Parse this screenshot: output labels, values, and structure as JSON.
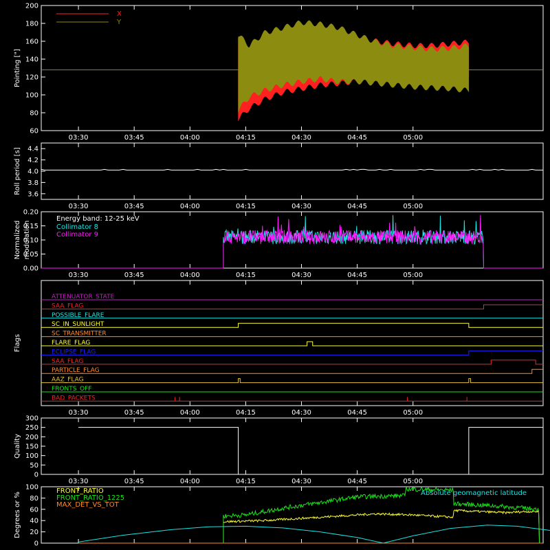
{
  "colors": {
    "bg": "#000000",
    "fg": "#ffffff",
    "red": "#ff2020",
    "olive": "#8c8c10",
    "cyan": "#19e6e6",
    "magenta": "#ff19ff",
    "yellow": "#ffff33",
    "green": "#19e619",
    "orange": "#ff8c2a",
    "blue": "#2020ff",
    "purple": "#c020c0",
    "gold": "#e6c040"
  },
  "time_ticks": [
    "03:30",
    "03:45",
    "04:00",
    "04:15",
    "04:30",
    "04:45",
    "05:00"
  ],
  "chart_data": [
    {
      "id": "pointing",
      "type": "area",
      "ylabel": "Pointing [\"]",
      "ylim": [
        60,
        200
      ],
      "yticks": [
        60,
        80,
        100,
        120,
        140,
        160,
        180,
        200
      ],
      "series": [
        {
          "name": "X",
          "color": "red",
          "start_min": 43,
          "end_min": 105,
          "upper": [
            [
              43,
              168
            ],
            [
              46,
              150
            ],
            [
              50,
              160
            ],
            [
              55,
              166
            ],
            [
              60,
              170
            ],
            [
              65,
              172
            ],
            [
              70,
              168
            ],
            [
              75,
              166
            ],
            [
              80,
              163
            ],
            [
              85,
              160
            ],
            [
              90,
              158
            ],
            [
              95,
              158
            ],
            [
              100,
              160
            ],
            [
              105,
              162
            ]
          ],
          "lower": [
            [
              43,
              70
            ],
            [
              46,
              82
            ],
            [
              50,
              92
            ],
            [
              55,
              100
            ],
            [
              60,
              104
            ],
            [
              65,
              108
            ],
            [
              70,
              110
            ],
            [
              75,
              112
            ],
            [
              80,
              112
            ],
            [
              85,
              114
            ],
            [
              90,
              114
            ],
            [
              95,
              114
            ],
            [
              100,
              116
            ],
            [
              105,
              118
            ]
          ]
        },
        {
          "name": "Y",
          "color": "olive",
          "start_min": 43,
          "end_min": 105,
          "upper": [
            [
              43,
              170
            ],
            [
              46,
              158
            ],
            [
              50,
              172
            ],
            [
              55,
              178
            ],
            [
              60,
              184
            ],
            [
              65,
              182
            ],
            [
              70,
              178
            ],
            [
              75,
              170
            ],
            [
              80,
              162
            ],
            [
              85,
              158
            ],
            [
              90,
              156
            ],
            [
              95,
              154
            ],
            [
              100,
              155
            ],
            [
              105,
              158
            ]
          ],
          "lower": [
            [
              43,
              80
            ],
            [
              46,
              95
            ],
            [
              50,
              102
            ],
            [
              55,
              108
            ],
            [
              60,
              112
            ],
            [
              65,
              115
            ],
            [
              70,
              112
            ],
            [
              75,
              112
            ],
            [
              80,
              110
            ],
            [
              85,
              108
            ],
            [
              90,
              106
            ],
            [
              95,
              105
            ],
            [
              100,
              104
            ],
            [
              105,
              102
            ]
          ]
        }
      ],
      "baseline": 128
    },
    {
      "id": "roll",
      "type": "line",
      "ylabel": "Roll period [s]",
      "ylim": [
        3.5,
        4.5
      ],
      "yticks": [
        3.6,
        3.8,
        4.0,
        4.2,
        4.4
      ],
      "series": [
        {
          "name": "",
          "color": "fg",
          "value": 4.02
        }
      ]
    },
    {
      "id": "modulation",
      "type": "line",
      "ylabel": "Normalized modulation",
      "ylim": [
        0,
        0.2
      ],
      "yticks": [
        0.0,
        0.05,
        0.1,
        0.15,
        0.2
      ],
      "annotation": "Energy band: 12-25 keV",
      "series": [
        {
          "name": "Collimator 8",
          "color": "cyan",
          "start_min": 39,
          "end_min": 109,
          "mean": 0.11
        },
        {
          "name": "Collimator 9",
          "color": "magenta",
          "start_min": 39,
          "end_min": 109,
          "mean": 0.11
        }
      ]
    },
    {
      "id": "flags",
      "type": "step",
      "ylabel": "Flags",
      "flags": [
        {
          "name": "ATTENUATOR_STATE",
          "color": "purple",
          "steps": []
        },
        {
          "name": "SAA_FLAG",
          "color": "red",
          "steps": [
            [
              109,
              1
            ]
          ]
        },
        {
          "name": "POSSIBLE_FLARE",
          "color": "cyan",
          "steps": []
        },
        {
          "name": "SC_IN_SUNLIGHT",
          "color": "yellow",
          "steps": [
            [
              43,
              1
            ],
            [
              105,
              0
            ]
          ]
        },
        {
          "name": "SC_TRANSMITTER",
          "color": "orange",
          "steps": []
        },
        {
          "name": "FLARE_FLAG",
          "color": "yellow",
          "steps": [
            [
              61.5,
              1
            ],
            [
              63,
              0
            ]
          ]
        },
        {
          "name": "ECLIPSE_FLAG",
          "color": "blue",
          "steps": [
            [
              43,
              0
            ],
            [
              105,
              1
            ]
          ]
        },
        {
          "name": "SAA_FLAG",
          "color": "red",
          "steps": [
            [
              111,
              1
            ],
            [
              123,
              0
            ]
          ]
        },
        {
          "name": "PARTICLE_FLAG",
          "color": "orange",
          "steps": [
            [
              122,
              1
            ]
          ]
        },
        {
          "name": "AAZ_FLAG",
          "color": "gold",
          "steps": [
            [
              43,
              1
            ],
            [
              43.5,
              0
            ],
            [
              105,
              1
            ],
            [
              105.5,
              0
            ]
          ]
        },
        {
          "name": "FRONTS_OFF",
          "color": "green",
          "steps": []
        },
        {
          "name": "BAD_PACKETS",
          "color": "red",
          "spikes": [
            26,
            27.2,
            88.5,
            104.5
          ]
        }
      ]
    },
    {
      "id": "quality",
      "type": "step",
      "ylabel": "Quality",
      "ylim": [
        0,
        300
      ],
      "yticks": [
        0,
        50,
        100,
        150,
        200,
        250,
        300
      ],
      "series": [
        {
          "name": "",
          "color": "fg",
          "points": [
            [
              0,
              250
            ],
            [
              43,
              250
            ],
            [
              43,
              0
            ],
            [
              105,
              0
            ],
            [
              105,
              250
            ],
            [
              125,
              250
            ]
          ]
        }
      ]
    },
    {
      "id": "ratios",
      "type": "line",
      "ylabel": "Degrees or %",
      "ylim": [
        0,
        100
      ],
      "yticks": [
        0,
        20,
        40,
        60,
        80,
        100
      ],
      "annotation": "Absolute geomagnetic latitude",
      "series": [
        {
          "name": "FRONT_RATIO",
          "color": "yellow",
          "points": [
            [
              39,
              38
            ],
            [
              50,
              40
            ],
            [
              60,
              44
            ],
            [
              70,
              48
            ],
            [
              80,
              52
            ],
            [
              90,
              50
            ],
            [
              95,
              48
            ],
            [
              101,
              46
            ],
            [
              101,
              58
            ],
            [
              115,
              54
            ],
            [
              120,
              56
            ],
            [
              124,
              56
            ]
          ]
        },
        {
          "name": "FRONT_RATIO_1225",
          "color": "green",
          "points": [
            [
              39,
              48
            ],
            [
              45,
              50
            ],
            [
              55,
              62
            ],
            [
              65,
              72
            ],
            [
              75,
              82
            ],
            [
              85,
              84
            ],
            [
              88,
              84
            ],
            [
              88,
              96
            ],
            [
              95,
              95
            ],
            [
              101,
              94
            ],
            [
              101,
              70
            ],
            [
              112,
              66
            ],
            [
              120,
              62
            ],
            [
              124,
              60
            ]
          ]
        },
        {
          "name": "MAX_DET_VS_TOT",
          "color": "orange",
          "points": [
            [
              0,
              0
            ],
            [
              125,
              0
            ]
          ]
        },
        {
          "name": "Absolute geomagnetic latitude",
          "color": "cyan",
          "points": [
            [
              0,
              2
            ],
            [
              12,
              14
            ],
            [
              25,
              24
            ],
            [
              35,
              29
            ],
            [
              45,
              30
            ],
            [
              55,
              27
            ],
            [
              65,
              20
            ],
            [
              75,
              10
            ],
            [
              82,
              0
            ],
            [
              90,
              13
            ],
            [
              100,
              26
            ],
            [
              110,
              32
            ],
            [
              118,
              30
            ],
            [
              130,
              20
            ],
            [
              140,
              8
            ],
            [
              146,
              0
            ]
          ]
        }
      ]
    }
  ]
}
